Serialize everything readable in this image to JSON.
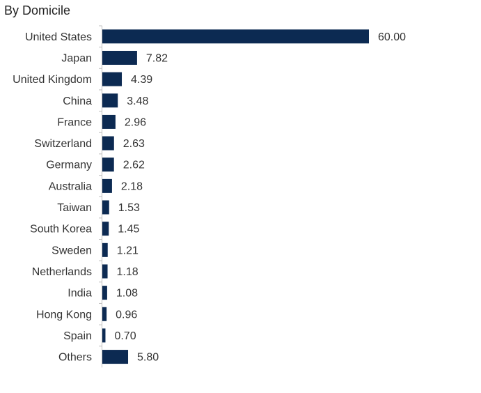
{
  "chart_data": {
    "type": "bar",
    "orientation": "horizontal",
    "title": "By Domicile",
    "categories": [
      "United States",
      "Japan",
      "United Kingdom",
      "China",
      "France",
      "Switzerland",
      "Germany",
      "Australia",
      "Taiwan",
      "South Korea",
      "Sweden",
      "Netherlands",
      "India",
      "Hong Kong",
      "Spain",
      "Others"
    ],
    "values": [
      60.0,
      7.82,
      4.39,
      3.48,
      2.96,
      2.63,
      2.62,
      2.18,
      1.53,
      1.45,
      1.21,
      1.18,
      1.08,
      0.96,
      0.7,
      5.8
    ],
    "value_labels": [
      "60.00",
      "7.82",
      "4.39",
      "3.48",
      "2.96",
      "2.63",
      "2.62",
      "2.18",
      "1.53",
      "1.45",
      "1.21",
      "1.18",
      "1.08",
      "0.96",
      "0.70",
      "5.80"
    ],
    "xlabel": "",
    "ylabel": "",
    "xlim": [
      0,
      60
    ],
    "grid": false,
    "bar_color": "#0c2a52",
    "axis_color": "#bfbfbf"
  }
}
